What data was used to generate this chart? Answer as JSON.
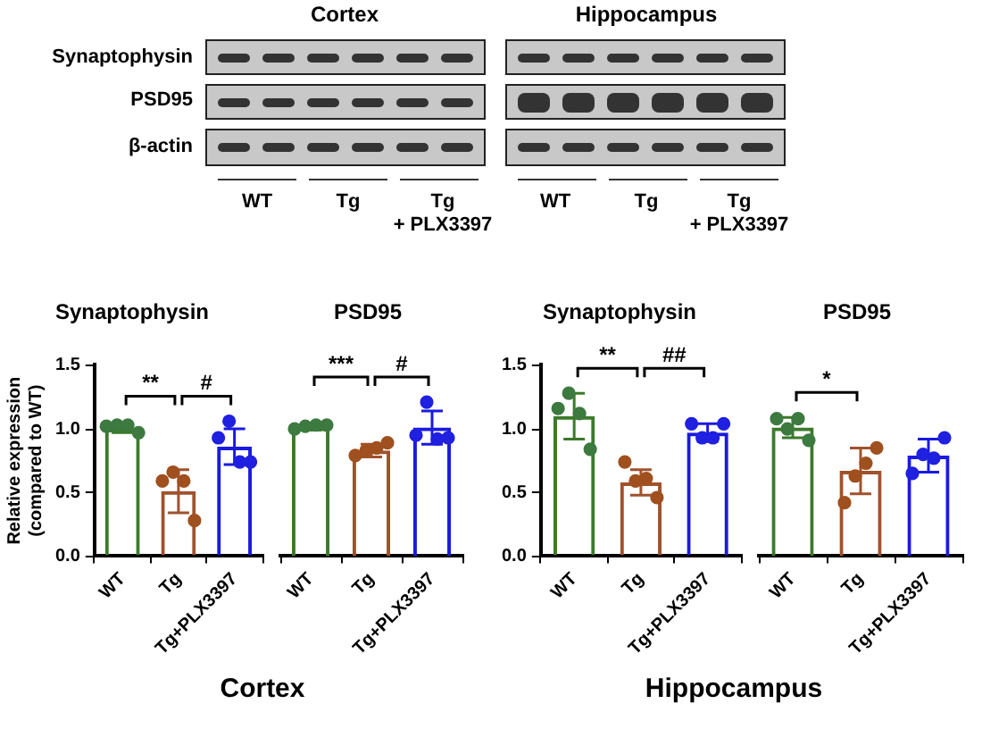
{
  "chart_data": [
    {
      "type": "other",
      "annotations": [
        "Cortex",
        "Hippocampus",
        "Synaptophysin",
        "PSD95",
        "β-actin",
        "WT",
        "Tg",
        "Tg\n+ PLX3397",
        "WT",
        "Tg",
        "Tg\n+ PLX3397"
      ]
    },
    {
      "type": "bar",
      "title": "Synaptophysin",
      "ylabel": "Relative expression\n(compared to WT)",
      "xlabel": "Cortex",
      "categories": [
        "WT",
        "Tg",
        "Tg+PLX3397"
      ],
      "ylim": [
        0,
        1.5
      ],
      "yticks": [
        {
          "value": 0,
          "label": "0.0"
        },
        {
          "value": 0.5,
          "label": "0.5"
        },
        {
          "value": 1,
          "label": "1.0"
        },
        {
          "value": 1.5,
          "label": "1.5"
        }
      ],
      "marker": "circle",
      "annotations": [
        "**",
        "#"
      ],
      "series": [
        {
          "type": "bar",
          "colors": [
            "#3b7a2a",
            "#a0522d",
            "#1a1ae0"
          ],
          "values": [
            1.0,
            0.51,
            0.86
          ],
          "errors": [
            0.03,
            0.17,
            0.14
          ]
        },
        {
          "type": "scatter",
          "x": [
            "WT",
            "WT",
            "WT",
            "WT",
            "Tg",
            "Tg",
            "Tg",
            "Tg",
            "Tg+PLX3397",
            "Tg+PLX3397",
            "Tg+PLX3397",
            "Tg+PLX3397"
          ],
          "values": [
            1.02,
            1.03,
            1.03,
            0.97,
            0.59,
            0.66,
            0.59,
            0.28,
            0.93,
            1.06,
            0.74,
            0.74
          ],
          "colors": [
            "#3d7a40",
            "#3d7a40",
            "#3d7a40",
            "#3d7a40",
            "#a0501e",
            "#a0501e",
            "#a0501e",
            "#a0501e",
            "#2020e0",
            "#2020e0",
            "#2020e0",
            "#2020e0"
          ]
        }
      ]
    },
    {
      "type": "bar",
      "title": "PSD95",
      "tick_labels": "x",
      "categories": [
        "WT",
        "Tg",
        "Tg+PLX3397"
      ],
      "ylim": [
        0,
        1.5
      ],
      "marker": "circle",
      "annotations": [
        "***",
        "#"
      ],
      "series": [
        {
          "type": "bar",
          "colors": [
            "#3b7a2a",
            "#a0522d",
            "#1a1ae0"
          ],
          "values": [
            1.01,
            0.83,
            1.01
          ],
          "errors": [
            0.02,
            0.05,
            0.13
          ]
        },
        {
          "type": "scatter",
          "x": [
            "WT",
            "WT",
            "WT",
            "WT",
            "Tg",
            "Tg",
            "Tg",
            "Tg",
            "Tg+PLX3397",
            "Tg+PLX3397",
            "Tg+PLX3397",
            "Tg+PLX3397"
          ],
          "values": [
            1.0,
            1.02,
            1.03,
            1.03,
            0.79,
            0.83,
            0.85,
            0.89,
            0.95,
            1.21,
            0.92,
            0.93
          ],
          "colors": [
            "#3d7a40",
            "#3d7a40",
            "#3d7a40",
            "#3d7a40",
            "#a0501e",
            "#a0501e",
            "#a0501e",
            "#a0501e",
            "#2020e0",
            "#2020e0",
            "#2020e0",
            "#2020e0"
          ]
        }
      ]
    },
    {
      "type": "bar",
      "title": "Synaptophysin",
      "xlabel": "Hippocampus",
      "categories": [
        "WT",
        "Tg",
        "Tg+PLX3397"
      ],
      "ylim": [
        0,
        1.5
      ],
      "yticks": [
        {
          "value": 0,
          "label": "0.0"
        },
        {
          "value": 0.5,
          "label": "0.5"
        },
        {
          "value": 1,
          "label": "1.0"
        },
        {
          "value": 1.5,
          "label": "1.5"
        }
      ],
      "marker": "circle",
      "annotations": [
        "**",
        "##"
      ],
      "series": [
        {
          "type": "bar",
          "colors": [
            "#3b7a2a",
            "#a0522d",
            "#1a1ae0"
          ],
          "values": [
            1.1,
            0.58,
            0.97
          ],
          "errors": [
            0.18,
            0.1,
            0.07
          ]
        },
        {
          "type": "scatter",
          "x": [
            "WT",
            "WT",
            "WT",
            "WT",
            "Tg",
            "Tg",
            "Tg",
            "Tg",
            "Tg+PLX3397",
            "Tg+PLX3397",
            "Tg+PLX3397",
            "Tg+PLX3397"
          ],
          "values": [
            1.16,
            1.28,
            1.12,
            0.84,
            0.74,
            0.59,
            0.61,
            0.46,
            1.04,
            0.93,
            0.93,
            1.04
          ],
          "colors": [
            "#3d7a40",
            "#3d7a40",
            "#3d7a40",
            "#3d7a40",
            "#a0501e",
            "#a0501e",
            "#a0501e",
            "#a0501e",
            "#2020e0",
            "#2020e0",
            "#2020e0",
            "#2020e0"
          ]
        }
      ]
    },
    {
      "type": "bar",
      "title": "PSD95",
      "tick_labels": "x",
      "categories": [
        "WT",
        "Tg",
        "Tg+PLX3397"
      ],
      "ylim": [
        0,
        1.5
      ],
      "marker": "circle",
      "annotations": [
        "*"
      ],
      "series": [
        {
          "type": "bar",
          "colors": [
            "#3b7a2a",
            "#a0522d",
            "#1a1ae0"
          ],
          "values": [
            1.01,
            0.67,
            0.79
          ],
          "errors": [
            0.08,
            0.18,
            0.13
          ]
        },
        {
          "type": "scatter",
          "x": [
            "WT",
            "WT",
            "WT",
            "WT",
            "Tg",
            "Tg",
            "Tg",
            "Tg",
            "Tg+PLX3397",
            "Tg+PLX3397",
            "Tg+PLX3397",
            "Tg+PLX3397"
          ],
          "values": [
            1.08,
            1.0,
            1.08,
            0.91,
            0.42,
            0.63,
            0.73,
            0.85,
            0.65,
            0.8,
            0.77,
            0.93
          ],
          "colors": [
            "#3d7a40",
            "#3d7a40",
            "#3d7a40",
            "#3d7a40",
            "#a0501e",
            "#a0501e",
            "#a0501e",
            "#a0501e",
            "#2020e0",
            "#2020e0",
            "#2020e0",
            "#2020e0"
          ]
        }
      ]
    }
  ]
}
